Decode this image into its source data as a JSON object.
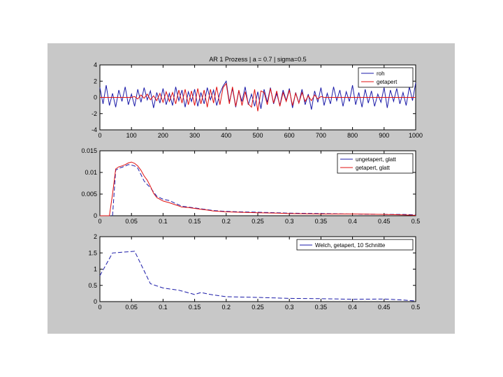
{
  "colors": {
    "figure_bg": "#c8c8c8",
    "axes_bg": "#ffffff",
    "blue": "#1a1aa8",
    "red": "#e01010"
  },
  "chart_data": [
    {
      "type": "line",
      "title": "AR 1 Prozess     |     a = 0.7     |     sigma=0.5",
      "xlim": [
        0,
        1000
      ],
      "ylim": [
        -4,
        4
      ],
      "xticks": [
        "0",
        "100",
        "200",
        "300",
        "400",
        "500",
        "600",
        "700",
        "800",
        "900",
        "1000"
      ],
      "yticks": [
        "4",
        "2",
        "0",
        "-2",
        "-4"
      ],
      "legend": {
        "placement": "top-right"
      },
      "series": [
        {
          "name": "roh",
          "color": "blue",
          "x": [
            0,
            10,
            20,
            30,
            40,
            50,
            60,
            70,
            80,
            90,
            100,
            110,
            120,
            130,
            140,
            150,
            160,
            170,
            180,
            190,
            200,
            210,
            220,
            230,
            240,
            250,
            260,
            270,
            280,
            290,
            300,
            310,
            320,
            330,
            340,
            350,
            360,
            370,
            380,
            390,
            400,
            410,
            420,
            430,
            440,
            450,
            460,
            470,
            480,
            490,
            500,
            510,
            520,
            530,
            540,
            550,
            560,
            570,
            580,
            590,
            600,
            610,
            620,
            630,
            640,
            650,
            660,
            670,
            680,
            690,
            700,
            710,
            720,
            730,
            740,
            750,
            760,
            770,
            780,
            790,
            800,
            810,
            820,
            830,
            840,
            850,
            860,
            870,
            880,
            890,
            900,
            910,
            920,
            930,
            940,
            950,
            960,
            970,
            980,
            990,
            1000
          ],
          "y": [
            1.2,
            -0.8,
            1.5,
            -1.0,
            0.5,
            -1.2,
            0.9,
            -0.5,
            1.3,
            -0.9,
            0.4,
            -1.1,
            1.0,
            -0.6,
            1.2,
            -0.3,
            0.8,
            -1.3,
            0.6,
            -0.7,
            1.1,
            -0.9,
            0.5,
            -1.0,
            1.3,
            -0.4,
            0.9,
            -1.2,
            0.7,
            -0.5,
            1.0,
            -1.1,
            0.6,
            -0.8,
            1.2,
            -0.3,
            0.9,
            -1.0,
            0.5,
            1.4,
            2.0,
            -0.6,
            1.1,
            -1.2,
            0.8,
            -0.5,
            1.3,
            -0.9,
            0.4,
            -1.1,
            0.7,
            -1.4,
            1.0,
            -0.6,
            1.2,
            -0.8,
            0.5,
            -1.0,
            0.9,
            -0.4,
            1.1,
            -1.3,
            0.6,
            -0.7,
            1.0,
            -0.9,
            0.4,
            -1.5,
            0.8,
            -0.6,
            1.2,
            -1.0,
            0.5,
            -0.8,
            1.3,
            -0.4,
            0.9,
            -1.1,
            0.7,
            -0.5,
            1.5,
            -0.9,
            0.6,
            -1.2,
            1.0,
            -0.7,
            0.8,
            -1.1,
            0.4,
            -0.6,
            1.2,
            -1.3,
            0.9,
            -0.5,
            1.1,
            -0.8,
            0.6,
            -1.0,
            1.3,
            -0.4,
            1.8
          ]
        },
        {
          "name": "getapert",
          "color": "red",
          "x": [
            0,
            10,
            20,
            30,
            40,
            50,
            60,
            70,
            80,
            90,
            100,
            110,
            120,
            130,
            140,
            150,
            160,
            170,
            180,
            190,
            200,
            210,
            220,
            230,
            240,
            250,
            260,
            270,
            280,
            290,
            300,
            310,
            320,
            330,
            340,
            350,
            360,
            370,
            380,
            390,
            400,
            410,
            420,
            430,
            440,
            450,
            460,
            470,
            480,
            490,
            500,
            510,
            520,
            530,
            540,
            550,
            560,
            570,
            580,
            590,
            600,
            610,
            620,
            630,
            640,
            650,
            660,
            670,
            680,
            690,
            700,
            710,
            720,
            730,
            740,
            750,
            760,
            770,
            780,
            790,
            800,
            810,
            820,
            830,
            840,
            850,
            860,
            870,
            880,
            890,
            900,
            910,
            920,
            930,
            940,
            950,
            960,
            970,
            980,
            990,
            1000
          ],
          "y": [
            0,
            0,
            0,
            0,
            0,
            0,
            0,
            0,
            0,
            0,
            0,
            0.1,
            -0.2,
            0.3,
            -0.1,
            0.4,
            -0.3,
            0.2,
            -0.4,
            0.5,
            -0.6,
            0.7,
            -0.5,
            0.6,
            -0.8,
            0.9,
            -0.7,
            1.0,
            -0.9,
            0.8,
            -1.0,
            1.1,
            -0.8,
            0.9,
            -1.2,
            1.0,
            -0.7,
            1.3,
            -0.9,
            1.2,
            1.7,
            -0.8,
            1.3,
            -1.1,
            0.9,
            -1.0,
            0.7,
            -0.8,
            -1.2,
            1.0,
            -1.7,
            0.8,
            0.6,
            -0.9,
            1.1,
            -0.7,
            0.8,
            -1.1,
            0.6,
            -0.5,
            0.9,
            -1.0,
            0.5,
            -0.7,
            0.6,
            -0.5,
            0.2,
            -0.4,
            0.3,
            -0.2,
            0.1,
            0,
            0,
            0,
            0,
            0,
            0,
            0,
            0,
            0,
            0,
            0,
            0,
            0,
            0,
            0,
            0,
            0,
            0,
            0,
            0,
            0,
            0,
            0,
            0,
            0,
            0,
            0,
            0,
            0,
            0
          ]
        }
      ]
    },
    {
      "type": "line",
      "xlim": [
        0,
        0.5
      ],
      "ylim": [
        0,
        0.015
      ],
      "xticks": [
        "0",
        "0.05",
        "0.1",
        "0.15",
        "0.2",
        "0.25",
        "0.3",
        "0.35",
        "0.4",
        "0.45",
        "0.5"
      ],
      "yticks": [
        "0.015",
        "0.01",
        "0.005",
        "0"
      ],
      "legend": {
        "placement": "top-right"
      },
      "series": [
        {
          "name": "ungetapert, glatt",
          "color": "blue",
          "x": [
            0,
            0.005,
            0.01,
            0.015,
            0.02,
            0.025,
            0.03,
            0.035,
            0.04,
            0.045,
            0.05,
            0.055,
            0.06,
            0.065,
            0.07,
            0.075,
            0.08,
            0.085,
            0.09,
            0.1,
            0.11,
            0.12,
            0.13,
            0.14,
            0.15,
            0.16,
            0.17,
            0.18,
            0.2,
            0.22,
            0.25,
            0.28,
            0.3,
            0.35,
            0.4,
            0.45,
            0.48,
            0.5
          ],
          "y": [
            0,
            0,
            0,
            0,
            0,
            0.0105,
            0.011,
            0.0112,
            0.0115,
            0.0118,
            0.0117,
            0.0115,
            0.011,
            0.0095,
            0.008,
            0.0072,
            0.0065,
            0.0055,
            0.0045,
            0.0038,
            0.0035,
            0.0028,
            0.0022,
            0.002,
            0.0018,
            0.0016,
            0.0014,
            0.0012,
            0.001,
            0.0009,
            0.0008,
            0.0007,
            0.0006,
            0.0005,
            0.0004,
            0.0003,
            0.0003,
            0.0002
          ]
        },
        {
          "name": "getapert, glatt",
          "color": "red",
          "x": [
            0,
            0.005,
            0.01,
            0.015,
            0.02,
            0.025,
            0.03,
            0.035,
            0.04,
            0.045,
            0.05,
            0.055,
            0.06,
            0.065,
            0.07,
            0.075,
            0.08,
            0.085,
            0.09,
            0.1,
            0.11,
            0.12,
            0.13,
            0.14,
            0.15,
            0.16,
            0.17,
            0.18,
            0.2,
            0.22,
            0.25,
            0.28,
            0.3,
            0.35,
            0.4,
            0.45,
            0.48,
            0.5
          ],
          "y": [
            0,
            0,
            0,
            0,
            0.005,
            0.0108,
            0.0113,
            0.0115,
            0.0118,
            0.0122,
            0.0124,
            0.0121,
            0.0115,
            0.0105,
            0.0092,
            0.0082,
            0.0068,
            0.0052,
            0.0042,
            0.0034,
            0.003,
            0.0025,
            0.002,
            0.0019,
            0.0017,
            0.0015,
            0.0013,
            0.0011,
            0.0009,
            0.0008,
            0.0007,
            0.0006,
            0.0005,
            0.0004,
            0.0004,
            0.0003,
            0.0002,
            0.0001
          ]
        }
      ]
    },
    {
      "type": "line",
      "xlim": [
        0,
        0.5
      ],
      "ylim": [
        0,
        2
      ],
      "xticks": [
        "0",
        "0.05",
        "0.1",
        "0.15",
        "0.2",
        "0.25",
        "0.3",
        "0.35",
        "0.4",
        "0.45",
        "0.5"
      ],
      "yticks": [
        "2",
        "1.5",
        "1",
        "0.5",
        "0"
      ],
      "legend": {
        "placement": "top-right"
      },
      "series": [
        {
          "name": "Welch, getapert, 10 Schnitte",
          "color": "blue",
          "x": [
            0,
            0.02,
            0.035,
            0.055,
            0.08,
            0.1,
            0.125,
            0.15,
            0.16,
            0.175,
            0.2,
            0.25,
            0.3,
            0.35,
            0.4,
            0.45,
            0.48,
            0.5
          ],
          "y": [
            0.8,
            1.5,
            1.52,
            1.55,
            0.55,
            0.42,
            0.35,
            0.22,
            0.28,
            0.22,
            0.15,
            0.13,
            0.1,
            0.09,
            0.07,
            0.08,
            0.05,
            0.02
          ]
        }
      ]
    }
  ]
}
